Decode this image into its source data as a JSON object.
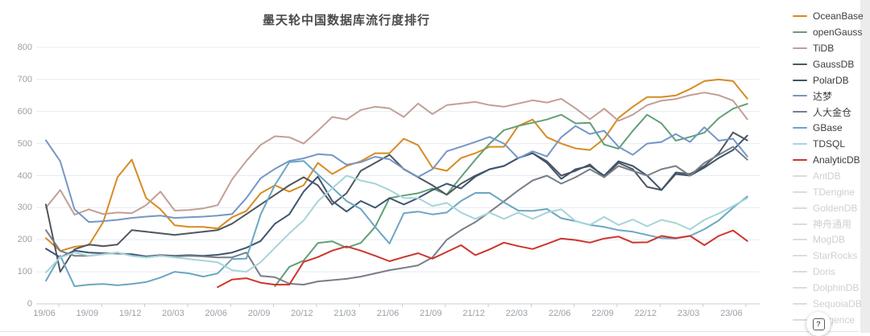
{
  "header": {
    "title": "墨天轮中国数据库流行度排行"
  },
  "page": {
    "help_label": "?"
  },
  "legend": {
    "inactive_items": [
      {
        "label": "AntDB"
      },
      {
        "label": "TDengine"
      },
      {
        "label": "GoldenDB"
      },
      {
        "label": "神舟通用"
      },
      {
        "label": "MogDB"
      },
      {
        "label": "StarRocks"
      },
      {
        "label": "Doris"
      },
      {
        "label": "DolphinDB"
      },
      {
        "label": "SequoiaDB"
      },
      {
        "label": "Kyligence"
      }
    ]
  },
  "chart_data": {
    "type": "line",
    "title": "墨天轮中国数据库流行度排行",
    "xlabel": "",
    "ylabel": "",
    "ylim": [
      0,
      800
    ],
    "y_ticks": [
      0,
      100,
      200,
      300,
      400,
      500,
      600,
      700,
      800
    ],
    "grid": true,
    "legend_position": "right",
    "x": [
      "19/06",
      "19/07",
      "19/08",
      "19/09",
      "19/10",
      "19/11",
      "19/12",
      "20/01",
      "20/02",
      "20/03",
      "20/04",
      "20/05",
      "20/06",
      "20/07",
      "20/08",
      "20/09",
      "20/10",
      "20/11",
      "20/12",
      "21/01",
      "21/02",
      "21/03",
      "21/04",
      "21/05",
      "21/06",
      "21/07",
      "21/08",
      "21/09",
      "21/10",
      "21/11",
      "21/12",
      "22/01",
      "22/02",
      "22/03",
      "22/04",
      "22/05",
      "22/06",
      "22/07",
      "22/08",
      "22/09",
      "22/10",
      "22/11",
      "22/12",
      "23/01",
      "23/02",
      "23/03",
      "23/04",
      "23/05",
      "23/06",
      "23/07"
    ],
    "x_axis_tick_labels": [
      "19/06",
      "19/09",
      "19/12",
      "20/03",
      "20/06",
      "20/09",
      "20/12",
      "21/03",
      "21/06",
      "21/09",
      "21/12",
      "22/03",
      "22/06",
      "22/09",
      "22/12",
      "23/03",
      "23/06"
    ],
    "series": [
      {
        "name": "OceanBase",
        "color": "#d78b21",
        "values": [
          205,
          165,
          178,
          183,
          255,
          395,
          450,
          330,
          295,
          245,
          240,
          240,
          235,
          270,
          290,
          345,
          370,
          350,
          370,
          440,
          405,
          430,
          445,
          470,
          470,
          515,
          495,
          425,
          415,
          455,
          470,
          490,
          490,
          555,
          575,
          520,
          500,
          485,
          480,
          515,
          580,
          615,
          645,
          645,
          650,
          670,
          695,
          700,
          695,
          640
        ]
      },
      {
        "name": "openGauss",
        "color": "#649f77",
        "values": [
          null,
          null,
          null,
          null,
          null,
          null,
          null,
          null,
          null,
          null,
          null,
          null,
          null,
          null,
          null,
          null,
          55,
          115,
          135,
          190,
          195,
          175,
          190,
          240,
          330,
          338,
          345,
          360,
          341,
          396,
          450,
          500,
          542,
          555,
          565,
          575,
          590,
          563,
          565,
          497,
          484,
          540,
          590,
          563,
          509,
          521,
          534,
          579,
          609,
          624
        ]
      },
      {
        "name": "TiDB",
        "color": "#c29f96",
        "values": [
          300,
          355,
          278,
          295,
          280,
          285,
          283,
          308,
          350,
          291,
          293,
          298,
          308,
          388,
          446,
          496,
          523,
          520,
          500,
          540,
          583,
          575,
          605,
          615,
          610,
          583,
          625,
          592,
          620,
          625,
          630,
          620,
          615,
          625,
          635,
          628,
          640,
          610,
          576,
          609,
          571,
          590,
          620,
          634,
          639,
          651,
          659,
          651,
          634,
          576
        ]
      },
      {
        "name": "GaussDB",
        "color": "#50565e",
        "values": [
          310,
          100,
          170,
          185,
          180,
          185,
          230,
          225,
          220,
          215,
          220,
          225,
          230,
          250,
          280,
          310,
          340,
          370,
          395,
          370,
          310,
          345,
          415,
          440,
          465,
          420,
          395,
          370,
          340,
          375,
          400,
          420,
          430,
          455,
          470,
          445,
          400,
          415,
          435,
          395,
          440,
          420,
          365,
          355,
          410,
          405,
          430,
          470,
          535,
          510
        ]
      },
      {
        "name": "PolarDB",
        "color": "#3e556e",
        "values": [
          172,
          145,
          166,
          160,
          158,
          157,
          155,
          148,
          152,
          150,
          152,
          150,
          153,
          160,
          175,
          196,
          250,
          279,
          350,
          397,
          321,
          288,
          321,
          300,
          330,
          310,
          330,
          355,
          375,
          360,
          397,
          420,
          430,
          455,
          470,
          440,
          390,
          420,
          430,
          400,
          445,
          430,
          400,
          355,
          405,
          400,
          425,
          455,
          480,
          525
        ]
      },
      {
        "name": "达梦",
        "color": "#7596c6",
        "values": [
          510,
          445,
          295,
          255,
          258,
          262,
          268,
          272,
          275,
          268,
          270,
          272,
          275,
          280,
          330,
          392,
          421,
          446,
          454,
          467,
          464,
          434,
          442,
          459,
          451,
          421,
          396,
          420,
          476,
          490,
          505,
          521,
          500,
          454,
          476,
          460,
          520,
          555,
          530,
          540,
          490,
          465,
          500,
          505,
          530,
          505,
          551,
          509,
          515,
          460
        ]
      },
      {
        "name": "人大金仓",
        "color": "#787e88",
        "values": [
          230,
          165,
          150,
          150,
          155,
          160,
          150,
          145,
          150,
          148,
          150,
          148,
          145,
          145,
          160,
          87,
          83,
          63,
          60,
          70,
          74,
          78,
          85,
          95,
          105,
          112,
          120,
          145,
          200,
          230,
          255,
          287,
          320,
          354,
          385,
          400,
          375,
          395,
          420,
          395,
          430,
          415,
          400,
          420,
          430,
          400,
          440,
          465,
          490,
          450
        ]
      },
      {
        "name": "GBase",
        "color": "#6ba6c3",
        "values": [
          72,
          150,
          55,
          60,
          62,
          58,
          62,
          68,
          82,
          100,
          95,
          85,
          95,
          140,
          141,
          279,
          371,
          442,
          446,
          404,
          363,
          321,
          296,
          240,
          188,
          283,
          288,
          279,
          285,
          321,
          346,
          346,
          317,
          291,
          290,
          296,
          267,
          258,
          246,
          240,
          230,
          225,
          215,
          205,
          204,
          212,
          233,
          260,
          300,
          335
        ]
      },
      {
        "name": "TDSQL",
        "color": "#a6d4da",
        "values": [
          98,
          145,
          160,
          150,
          155,
          160,
          150,
          145,
          150,
          145,
          140,
          135,
          130,
          105,
          100,
          130,
          175,
          220,
          260,
          320,
          360,
          400,
          385,
          375,
          355,
          330,
          330,
          305,
          315,
          285,
          265,
          285,
          265,
          285,
          265,
          285,
          295,
          258,
          246,
          271,
          246,
          263,
          242,
          262,
          252,
          232,
          262,
          282,
          305,
          330
        ]
      },
      {
        "name": "AnalyticDB",
        "color": "#ce352c",
        "values": [
          null,
          null,
          null,
          null,
          null,
          null,
          null,
          null,
          null,
          null,
          null,
          null,
          52,
          76,
          80,
          66,
          60,
          60,
          131,
          146,
          166,
          179,
          166,
          150,
          133,
          146,
          158,
          141,
          162,
          183,
          152,
          170,
          191,
          180,
          171,
          187,
          204,
          199,
          191,
          204,
          210,
          191,
          192,
          212,
          205,
          212,
          183,
          212,
          229,
          196
        ]
      }
    ]
  }
}
